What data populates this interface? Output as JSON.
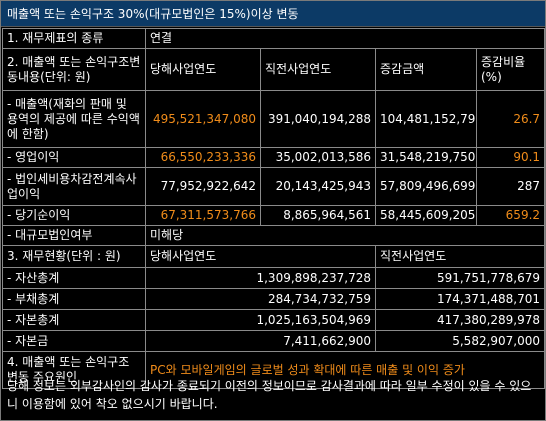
{
  "title": "매출액 또는 손익구조 30%(대규모법인은 15%)이상 변동",
  "section1": {
    "label": "1. 재무제표의 종류",
    "value": "연결"
  },
  "section2": {
    "label": "2. 매출액 또는 손익구조변동내용(단위: 원)",
    "headers": [
      "당해사업연도",
      "직전사업연도",
      "증감금액",
      "증감비율(%)"
    ],
    "rows": [
      {
        "label": "- 매출액(재화의 판매 및 용역의 제공에 따른 수익액에 한함)",
        "current": "495,521,347,080",
        "previous": "391,040,194,288",
        "change": "104,481,152,792",
        "ratio": "26.7",
        "highlight": true
      },
      {
        "label": "- 영업이익",
        "current": "66,550,233,336",
        "previous": "35,002,013,586",
        "change": "31,548,219,750",
        "ratio": "90.1",
        "highlight": true
      },
      {
        "label": "- 법인세비용차감전계속사업이익",
        "current": "77,952,922,642",
        "previous": "20,143,425,943",
        "change": "57,809,496,699",
        "ratio": "287",
        "highlight": false
      },
      {
        "label": "- 당기순이익",
        "current": "67,311,573,766",
        "previous": "8,865,964,561",
        "change": "58,445,609,205",
        "ratio": "659.2",
        "highlight": true
      }
    ],
    "large_corp_label": "- 대규모법인여부",
    "large_corp_value": "미해당"
  },
  "section3": {
    "label": "3. 재무현황(단위 : 원)",
    "headers": [
      "당해사업연도",
      "직전사업연도"
    ],
    "rows": [
      {
        "label": "- 자산총계",
        "current": "1,309,898,237,728",
        "previous": "591,751,778,679"
      },
      {
        "label": "- 부채총계",
        "current": "284,734,732,759",
        "previous": "174,371,488,701"
      },
      {
        "label": "- 자본총계",
        "current": "1,025,163,504,969",
        "previous": "417,380,289,978"
      },
      {
        "label": "- 자본금",
        "current": "7,411,662,900",
        "previous": "5,582,907,000"
      }
    ]
  },
  "section4": {
    "label": "4. 매출액 또는 손익구조 변동 주요원인",
    "value": "PC와 모바일게임의 글로벌 성과 확대에 따른 매출 및 이익 증가"
  },
  "footnote": "당해 정보는 외부감사인의 감사가 종료되기 이전의 정보이므로 감사결과에 따라 일부 수정이 있을 수 있으니 이용함에 있어 착오 없으시기 바랍니다.",
  "colors": {
    "title_bg": "#0c3a66",
    "highlight": "#f08c1a",
    "border": "#8a8a8a",
    "background": "#000000"
  }
}
